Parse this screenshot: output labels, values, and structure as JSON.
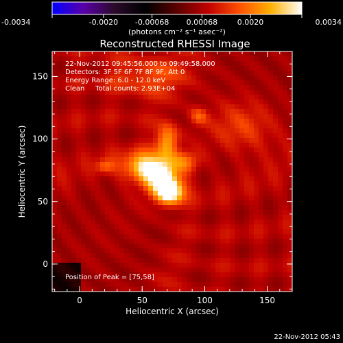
{
  "chart_data": {
    "type": "heatmap",
    "title": "Reconstructed RHESSI Image",
    "xlabel": "Heliocentric X (arcsec)",
    "ylabel": "Heliocentric Y (arcsec)",
    "xlim": [
      -22,
      170
    ],
    "ylim": [
      -22,
      170
    ],
    "xticks": [
      0,
      50,
      100,
      150
    ],
    "yticks": [
      0,
      50,
      100,
      150
    ],
    "colorbar": {
      "min": -0.0034,
      "max": 0.0034,
      "ticks": [
        -0.0034,
        -0.002,
        -0.00068,
        0.00068,
        0.002,
        0.0034
      ],
      "tick_labels": [
        "-0.0034",
        "-0.0020",
        "-0.00068",
        "0.00068",
        "0.0020",
        "0.0034"
      ],
      "units_label": "(photons cm⁻² s⁻¹ asec⁻²)",
      "colors": [
        "#0000ff",
        "#5a00a8",
        "#2a0a2a",
        "#000000",
        "#5a0000",
        "#c00000",
        "#ff5000",
        "#ffb000",
        "#ffffff"
      ]
    },
    "annotations": [
      "22-Nov-2012 09:45:56.000 to 09:49:58.000",
      "Detectors: 3F 5F 6F 7F 8F 9F, Att 0",
      "Energy Range: 6.0 - 12.0 keV",
      "Clean     Total counts: 2.93E+04"
    ],
    "peak_label": "Position of Peak = [75,58]",
    "peak": [
      75,
      58
    ],
    "sources": [
      {
        "x": 72,
        "y": 58,
        "sx": 8,
        "sy": 7,
        "a": 1.0
      },
      {
        "x": 64,
        "y": 72,
        "sx": 10,
        "sy": 9,
        "a": 0.75
      },
      {
        "x": 50,
        "y": 78,
        "sx": 12,
        "sy": 8,
        "a": 0.55
      },
      {
        "x": 70,
        "y": 98,
        "sx": 6,
        "sy": 9,
        "a": 0.55
      },
      {
        "x": 85,
        "y": 82,
        "sx": 8,
        "sy": 6,
        "a": 0.35
      },
      {
        "x": 95,
        "y": 118,
        "sx": 5,
        "sy": 5,
        "a": 0.3
      },
      {
        "x": 20,
        "y": 78,
        "sx": 5,
        "sy": 4,
        "a": 0.3
      },
      {
        "x": 130,
        "y": 110,
        "sx": 18,
        "sy": 14,
        "a": 0.25
      },
      {
        "x": 55,
        "y": 150,
        "sx": 22,
        "sy": 10,
        "a": 0.25
      }
    ]
  },
  "footer_timestamp": "22-Nov-2012 05:43"
}
